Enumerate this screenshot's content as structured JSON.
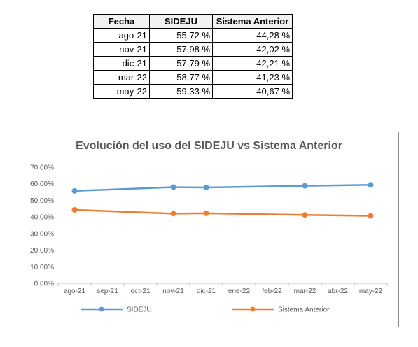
{
  "table": {
    "headers": [
      "Fecha",
      "SIDEJU",
      "Sistema Anterior"
    ],
    "rows": [
      [
        "ago-21",
        "55,72 %",
        "44,28 %"
      ],
      [
        "nov-21",
        "57,98 %",
        "42,02 %"
      ],
      [
        "dic-21",
        "57,79 %",
        "42,21 %"
      ],
      [
        "mar-22",
        "58,77 %",
        "41,23 %"
      ],
      [
        "may-22",
        "59,33 %",
        "40,67 %"
      ]
    ]
  },
  "chart_data": {
    "type": "line",
    "title": "Evolución del uso del SIDEJU vs Sistema Anterior",
    "xlabel": "",
    "ylabel": "",
    "categories": [
      "ago-21",
      "sep-21",
      "oct-21",
      "nov-21",
      "dic-21",
      "ene-22",
      "feb-22",
      "mar-22",
      "abr-22",
      "may-22"
    ],
    "ylim": [
      0,
      70
    ],
    "yticks": [
      "0,00%",
      "10,00%",
      "20,00%",
      "30,00%",
      "40,00%",
      "50,00%",
      "60,00%",
      "70,00%"
    ],
    "grid": false,
    "legend_position": "bottom",
    "series": [
      {
        "name": "SIDEJU",
        "color": "#5b9bd5",
        "points": [
          {
            "x": "ago-21",
            "y": 55.72
          },
          {
            "x": "nov-21",
            "y": 57.98
          },
          {
            "x": "dic-21",
            "y": 57.79
          },
          {
            "x": "mar-22",
            "y": 58.77
          },
          {
            "x": "may-22",
            "y": 59.33
          }
        ]
      },
      {
        "name": "Sistema Anterior",
        "color": "#ed7d31",
        "points": [
          {
            "x": "ago-21",
            "y": 44.28
          },
          {
            "x": "nov-21",
            "y": 42.02
          },
          {
            "x": "dic-21",
            "y": 42.21
          },
          {
            "x": "mar-22",
            "y": 41.23
          },
          {
            "x": "may-22",
            "y": 40.67
          }
        ]
      }
    ]
  }
}
